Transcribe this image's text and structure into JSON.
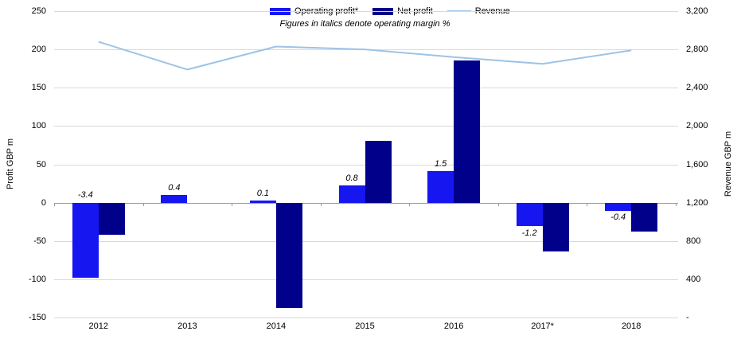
{
  "chart_data": {
    "type": "bar",
    "categories": [
      "2012",
      "2013",
      "2014",
      "2015",
      "2016",
      "2017*",
      "2018"
    ],
    "series": [
      {
        "name": "Operating profit*",
        "type": "bar",
        "axis": "left",
        "color": "#1616f0",
        "values": [
          -98,
          10,
          3,
          23,
          41,
          -31,
          -11
        ]
      },
      {
        "name": "Net profit",
        "type": "bar",
        "axis": "left",
        "color": "#00008b",
        "values": [
          -42,
          0,
          -138,
          81,
          186,
          -64,
          -38
        ]
      },
      {
        "name": "Revenue",
        "type": "line",
        "axis": "right",
        "color": "#9dc3e6",
        "values": [
          2880,
          2590,
          2830,
          2800,
          2720,
          2650,
          2790
        ]
      }
    ],
    "margin_labels": {
      "note": "operating margin %",
      "values": [
        "-3.4",
        "0.4",
        "0.1",
        "0.8",
        "1.5",
        "-1.2",
        "-0.4"
      ],
      "positions": [
        "above_zero",
        "above",
        "above",
        "above",
        "above",
        "below",
        "below"
      ]
    },
    "subtitle": "Figures in italics denote operating margin %",
    "left_axis": {
      "title": "Profit GBP m",
      "min": -150,
      "max": 250,
      "tick_step": 50,
      "tick_labels": [
        "250",
        "200",
        "150",
        "100",
        "50",
        "0",
        "-50",
        "-100",
        "-150"
      ]
    },
    "right_axis": {
      "title": "Revenue GBP m",
      "min": 0,
      "max": 3200,
      "tick_step": 400,
      "tick_labels": [
        "3,200",
        "2,800",
        "2,400",
        "2,000",
        "1,600",
        "1,200",
        "800",
        "400",
        "-"
      ]
    },
    "legend_position": "top-center",
    "grid": true,
    "style": {
      "gridline_color": "#d9d9d9",
      "zero_line_color": "#9a9a9a",
      "background": "#ffffff",
      "text_color": "#000000"
    }
  }
}
